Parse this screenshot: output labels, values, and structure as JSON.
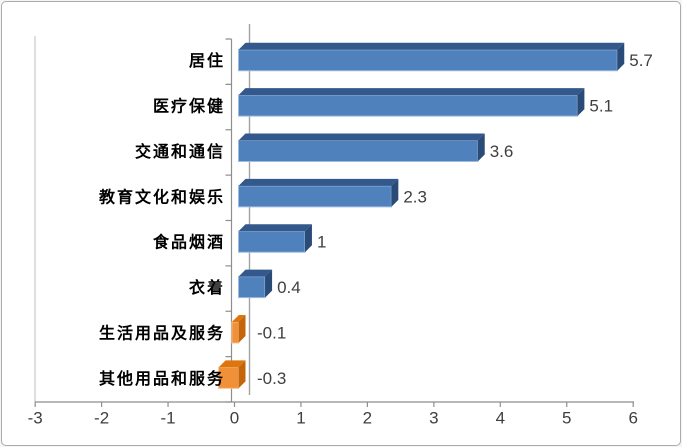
{
  "chart_data": {
    "type": "bar",
    "orientation": "horizontal",
    "style": "3d",
    "title": "",
    "xlabel": "",
    "ylabel": "",
    "legend": "none",
    "grid": "zero-line-only",
    "categories": [
      "居住",
      "医疗保健",
      "交通和通信",
      "教育文化和娱乐",
      "食品烟酒",
      "衣着",
      "生活用品及服务",
      "其他用品和服务"
    ],
    "values": [
      5.7,
      5.1,
      3.6,
      2.3,
      1,
      0.4,
      -0.1,
      -0.3
    ],
    "value_labels": [
      "5.7",
      "5.1",
      "3.6",
      "2.3",
      "1",
      "0.4",
      "-0.1",
      "-0.3"
    ],
    "x_ticks": [
      -3,
      -2,
      -1,
      0,
      1,
      2,
      3,
      4,
      5,
      6
    ],
    "x_tick_labels": [
      "-3",
      "-2",
      "-1",
      "0",
      "1",
      "2",
      "3",
      "4",
      "5",
      "6"
    ],
    "xlim": [
      -3,
      6
    ],
    "colors": {
      "positive_face": "#4F81BD",
      "positive_top": "#33588C",
      "positive_side": "#2A4A77",
      "positive_edge": "#9FBCDD",
      "negative_face": "#F0913A",
      "negative_top": "#DE760F",
      "negative_side": "#C4650A",
      "negative_edge": "#F8C392",
      "axis_line": "#8E8E8E",
      "zero_line": "#A3A3A3",
      "plot_border": "#C8C8C8",
      "frame_border": "#ABABAB",
      "tick_text": "#3F3F3F",
      "value_text": "#3F3F3F",
      "category_text": "#000000",
      "background": "#FFFFFF"
    }
  }
}
